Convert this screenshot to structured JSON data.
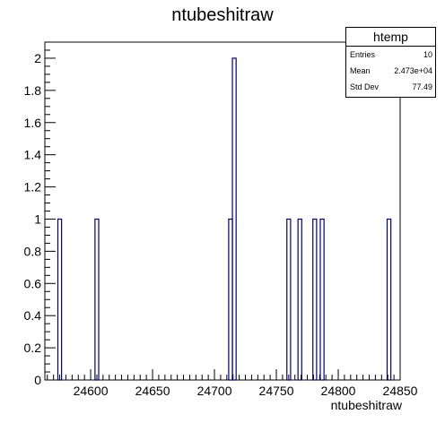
{
  "chart_data": {
    "type": "bar",
    "title": "ntubeshitraw",
    "xlabel": "ntubeshitraw",
    "ylabel": "",
    "xlim": [
      24563,
      24850
    ],
    "ylim": [
      0,
      2.1
    ],
    "bin_width": 3,
    "x_ticks": [
      24600,
      24650,
      24700,
      24750,
      24800,
      24850
    ],
    "y_ticks": [
      0,
      0.2,
      0.4,
      0.6,
      0.8,
      1,
      1.2,
      1.4,
      1.6,
      1.8,
      2
    ],
    "bins": [
      {
        "x": 24575,
        "value": 1
      },
      {
        "x": 24605,
        "value": 1
      },
      {
        "x": 24713,
        "value": 1
      },
      {
        "x": 24716,
        "value": 2
      },
      {
        "x": 24760,
        "value": 1
      },
      {
        "x": 24769,
        "value": 1
      },
      {
        "x": 24781,
        "value": 1
      },
      {
        "x": 24787,
        "value": 1
      },
      {
        "x": 24841,
        "value": 1
      }
    ],
    "line_color": "#000080",
    "grid": false,
    "legend": "none"
  },
  "stats": {
    "name": "htemp",
    "rows": [
      {
        "label": "Entries",
        "value": "10"
      },
      {
        "label": "Mean",
        "value": "2.473e+04"
      },
      {
        "label": "Std Dev",
        "value": "77.49"
      }
    ]
  }
}
